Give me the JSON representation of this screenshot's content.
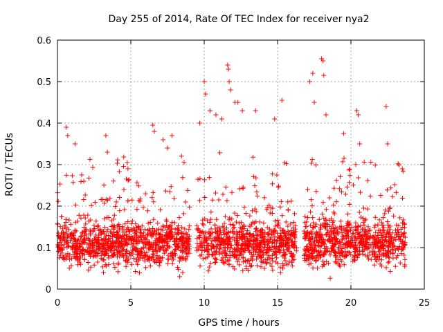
{
  "chart_data": {
    "type": "scatter",
    "title": "Day 255 of 2014, Rate Of TEC Index for receiver nya2",
    "xlabel": "GPS time / hours",
    "ylabel": "ROTI / TECUs",
    "xlim": [
      0,
      25
    ],
    "ylim": [
      0,
      0.6
    ],
    "x_ticks": [
      0,
      5,
      10,
      15,
      20,
      25
    ],
    "y_ticks": [
      0,
      0.1,
      0.2,
      0.3,
      0.4,
      0.5,
      0.6
    ],
    "x_tick_labels": [
      "0",
      "5",
      "10",
      "15",
      "20",
      "25"
    ],
    "y_tick_labels": [
      "0",
      "0.1",
      "0.2",
      "0.3",
      "0.4",
      "0.5",
      "0.6"
    ],
    "grid": true,
    "marker": "+",
    "color": "#ff0000",
    "series": [
      {
        "name": "ROTI",
        "segments": [
          [
            0.0,
            9.0
          ],
          [
            9.5,
            16.3
          ],
          [
            16.8,
            23.7
          ]
        ],
        "sample_points": [
          [
            0.6,
            0.39
          ],
          [
            0.7,
            0.37
          ],
          [
            1.2,
            0.35
          ],
          [
            1.8,
            0.26
          ],
          [
            3.3,
            0.37
          ],
          [
            3.4,
            0.33
          ],
          [
            6.5,
            0.395
          ],
          [
            6.6,
            0.38
          ],
          [
            7.2,
            0.36
          ],
          [
            7.5,
            0.34
          ],
          [
            7.8,
            0.37
          ],
          [
            9.7,
            0.4
          ],
          [
            10.0,
            0.5
          ],
          [
            10.1,
            0.47
          ],
          [
            10.4,
            0.43
          ],
          [
            10.8,
            0.42
          ],
          [
            11.2,
            0.41
          ],
          [
            11.6,
            0.54
          ],
          [
            11.65,
            0.53
          ],
          [
            11.7,
            0.5
          ],
          [
            11.8,
            0.48
          ],
          [
            12.1,
            0.45
          ],
          [
            12.3,
            0.45
          ],
          [
            12.6,
            0.43
          ],
          [
            13.5,
            0.43
          ],
          [
            14.8,
            0.41
          ],
          [
            15.3,
            0.455
          ],
          [
            17.2,
            0.5
          ],
          [
            17.4,
            0.52
          ],
          [
            17.5,
            0.45
          ],
          [
            18.0,
            0.555
          ],
          [
            18.1,
            0.55
          ],
          [
            18.15,
            0.515
          ],
          [
            18.3,
            0.42
          ],
          [
            19.5,
            0.375
          ],
          [
            20.4,
            0.43
          ],
          [
            20.5,
            0.42
          ],
          [
            20.6,
            0.35
          ],
          [
            22.4,
            0.44
          ],
          [
            22.5,
            0.35
          ],
          [
            23.5,
            0.29
          ]
        ]
      }
    ]
  }
}
